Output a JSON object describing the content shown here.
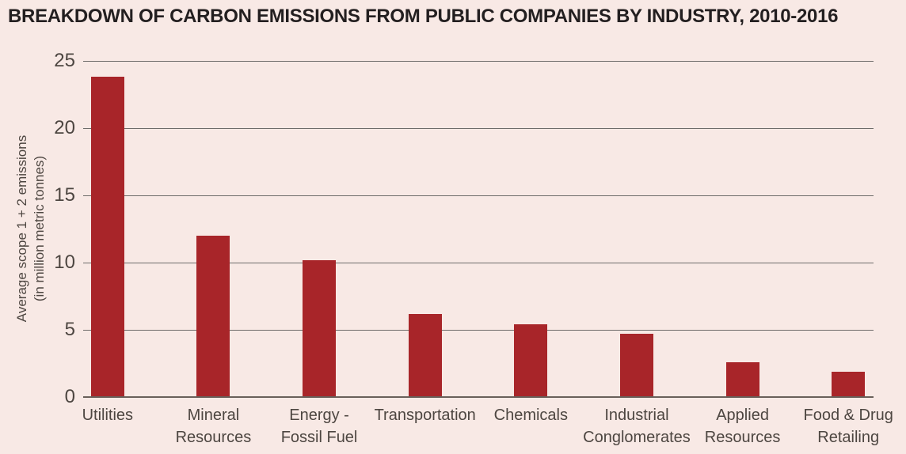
{
  "colors": {
    "background": "#F8E9E5",
    "bar": "#A82529",
    "gridline": "#6E6C6A",
    "axis_line": "#69605A",
    "title_text": "#231F20",
    "axis_text": "#4D4641"
  },
  "chart_data": {
    "type": "bar",
    "title": "BREAKDOWN OF CARBON EMISSIONS FROM PUBLIC COMPANIES BY INDUSTRY, 2010-2016",
    "ylabel": "Average scope 1 + 2 emissions (in million metric tonnes)",
    "ylabel_lines": [
      "Average scope 1 + 2 emissions",
      "(in million metric tonnes)"
    ],
    "xlabel": "",
    "categories": [
      "Utilities",
      "Mineral Resources",
      "Energy - Fossil Fuel",
      "Transportation",
      "Chemicals",
      "Industrial Conglomerates",
      "Applied Resources",
      "Food & Drug Retailing"
    ],
    "category_label_lines": [
      [
        "Utilities"
      ],
      [
        "Mineral",
        "Resources"
      ],
      [
        "Energy -",
        "Fossil Fuel"
      ],
      [
        "Transportation"
      ],
      [
        "Chemicals"
      ],
      [
        "Industrial",
        "Conglomerates"
      ],
      [
        "Applied",
        "Resources"
      ],
      [
        "Food & Drug",
        "Retailing"
      ]
    ],
    "values": [
      23.8,
      12.0,
      10.2,
      6.2,
      5.4,
      4.7,
      2.6,
      1.9
    ],
    "yticks": [
      0,
      5,
      10,
      15,
      20,
      25
    ],
    "ylim": [
      0,
      25
    ],
    "grid": true,
    "legend": false
  }
}
